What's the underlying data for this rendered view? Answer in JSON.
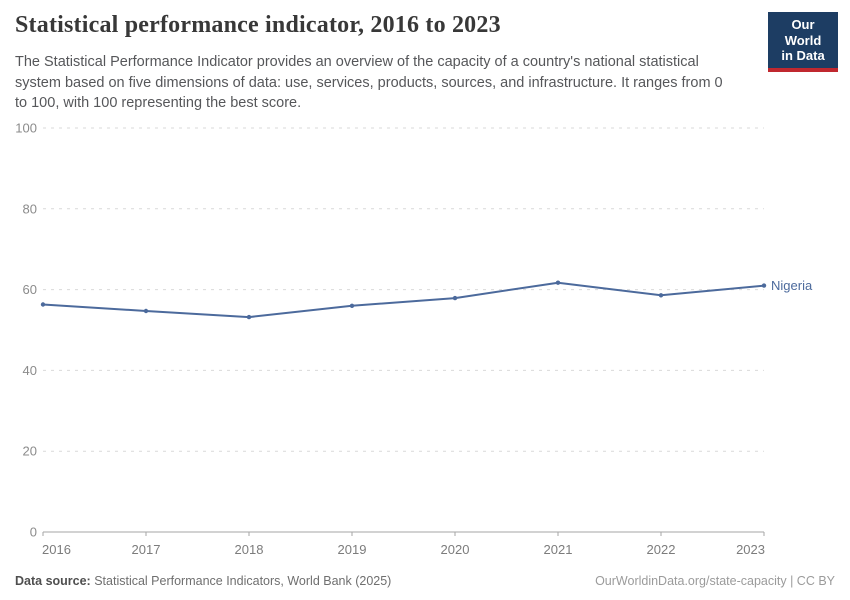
{
  "header": {
    "title": "Statistical performance indicator, 2016 to 2023",
    "subtitle": "The Statistical Performance Indicator provides an overview of the capacity of a country's national statistical\nsystem based on five dimensions of data: use, services, products, sources, and infrastructure. It ranges from 0\nto 100, with 100 representing the best score."
  },
  "logo": {
    "line1": "Our World",
    "line2": "in Data",
    "bg_color": "#1d3d63",
    "bar_color": "#c0282f"
  },
  "chart_data": {
    "type": "line",
    "title": "Statistical performance indicator, 2016 to 2023",
    "x": [
      2016,
      2017,
      2018,
      2019,
      2020,
      2021,
      2022,
      2023
    ],
    "series": [
      {
        "name": "Nigeria",
        "values": [
          56.3,
          54.7,
          53.2,
          56.0,
          57.9,
          61.7,
          58.6,
          61.0
        ],
        "color": "#4C6A9C"
      }
    ],
    "xlabel": "",
    "ylabel": "",
    "ylim": [
      0,
      100
    ],
    "yticks": [
      0,
      20,
      40,
      60,
      80,
      100
    ],
    "grid": "horizontal-dashed",
    "legend_position": "end-of-line-label",
    "end_label": "Nigeria"
  },
  "style": {
    "gridline_color": "#d9d9d9",
    "axis_color": "#a5a5a5"
  },
  "footer": {
    "source_label": "Data source:",
    "source_text": "Statistical Performance Indicators, World Bank (2025)",
    "attribution": "OurWorldinData.org/state-capacity | CC BY"
  }
}
